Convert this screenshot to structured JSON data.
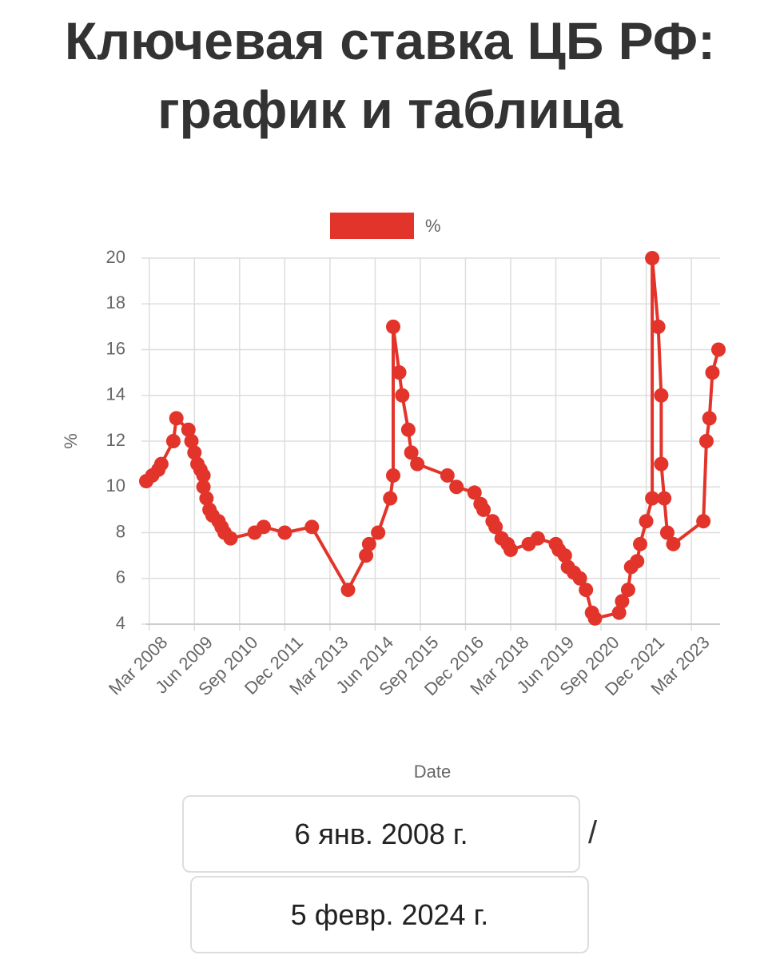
{
  "header": {
    "title": "Ключевая ставка ЦБ РФ: график и таблица"
  },
  "chart_data": {
    "type": "line",
    "x_label": "Date",
    "y_label": "%",
    "x": [
      "2008-02",
      "2008-04",
      "2008-06",
      "2008-07",
      "2008-11",
      "2008-12",
      "2009-04",
      "2009-05",
      "2009-06",
      "2009-07",
      "2009-08",
      "2009-09",
      "2009-09",
      "2009-10",
      "2009-11",
      "2009-12",
      "2010-02",
      "2010-03",
      "2010-04",
      "2010-06",
      "2011-02",
      "2011-05",
      "2011-12",
      "2012-09",
      "2013-09",
      "2014-03",
      "2014-04",
      "2014-07",
      "2014-11",
      "2014-12",
      "2014-12",
      "2015-02",
      "2015-03",
      "2015-05",
      "2015-06",
      "2015-08",
      "2016-06",
      "2016-09",
      "2017-03",
      "2017-05",
      "2017-06",
      "2017-09",
      "2017-10",
      "2017-12",
      "2018-02",
      "2018-03",
      "2018-09",
      "2018-12",
      "2019-06",
      "2019-07",
      "2019-09",
      "2019-10",
      "2019-12",
      "2020-02",
      "2020-04",
      "2020-06",
      "2020-07",
      "2021-03",
      "2021-04",
      "2021-06",
      "2021-07",
      "2021-09",
      "2021-10",
      "2021-12",
      "2022-02",
      "2022-02",
      "2022-04",
      "2022-05",
      "2022-05",
      "2022-06",
      "2022-07",
      "2022-09",
      "2023-07",
      "2023-08",
      "2023-09",
      "2023-10",
      "2023-12"
    ],
    "series": [
      {
        "name": "%",
        "color": "#e2342a",
        "values": [
          10.25,
          10.5,
          10.75,
          11,
          12,
          13,
          12.5,
          12,
          11.5,
          11,
          10.75,
          10.5,
          10,
          9.5,
          9,
          8.75,
          8.5,
          8.25,
          8,
          7.75,
          8,
          8.25,
          8,
          8.25,
          5.5,
          7,
          7.5,
          8,
          9.5,
          10.5,
          17,
          15,
          14,
          12.5,
          11.5,
          11,
          10.5,
          10,
          9.75,
          9.25,
          9,
          8.5,
          8.25,
          7.75,
          7.5,
          7.25,
          7.5,
          7.75,
          7.5,
          7.25,
          7,
          6.5,
          6.25,
          6,
          5.5,
          4.5,
          4.25,
          4.5,
          5,
          5.5,
          6.5,
          6.75,
          7.5,
          8.5,
          9.5,
          20,
          17,
          14,
          11,
          9.5,
          8,
          7.5,
          8.5,
          12,
          13,
          15,
          16
        ]
      }
    ],
    "xlim": [
      "2008-02",
      "2023-12"
    ],
    "xticks": [
      {
        "value": "2008-03",
        "label": "Mar 2008"
      },
      {
        "value": "2009-06",
        "label": "Jun 2009"
      },
      {
        "value": "2010-09",
        "label": "Sep 2010"
      },
      {
        "value": "2011-12",
        "label": "Dec 2011"
      },
      {
        "value": "2013-03",
        "label": "Mar 2013"
      },
      {
        "value": "2014-06",
        "label": "Jun 2014"
      },
      {
        "value": "2015-09",
        "label": "Sep 2015"
      },
      {
        "value": "2016-12",
        "label": "Dec 2016"
      },
      {
        "value": "2018-03",
        "label": "Mar 2018"
      },
      {
        "value": "2019-06",
        "label": "Jun 2019"
      },
      {
        "value": "2020-09",
        "label": "Sep 2020"
      },
      {
        "value": "2021-12",
        "label": "Dec 2021"
      },
      {
        "value": "2023-03",
        "label": "Mar 2023"
      }
    ],
    "ylim": [
      4,
      20
    ],
    "yticks": [
      4,
      6,
      8,
      10,
      12,
      14,
      16,
      18,
      20
    ],
    "grid": true,
    "legend": "top"
  },
  "date_range": {
    "start": "6 янв. 2008 г.",
    "separator": "/",
    "end": "5 февр. 2024 г."
  }
}
